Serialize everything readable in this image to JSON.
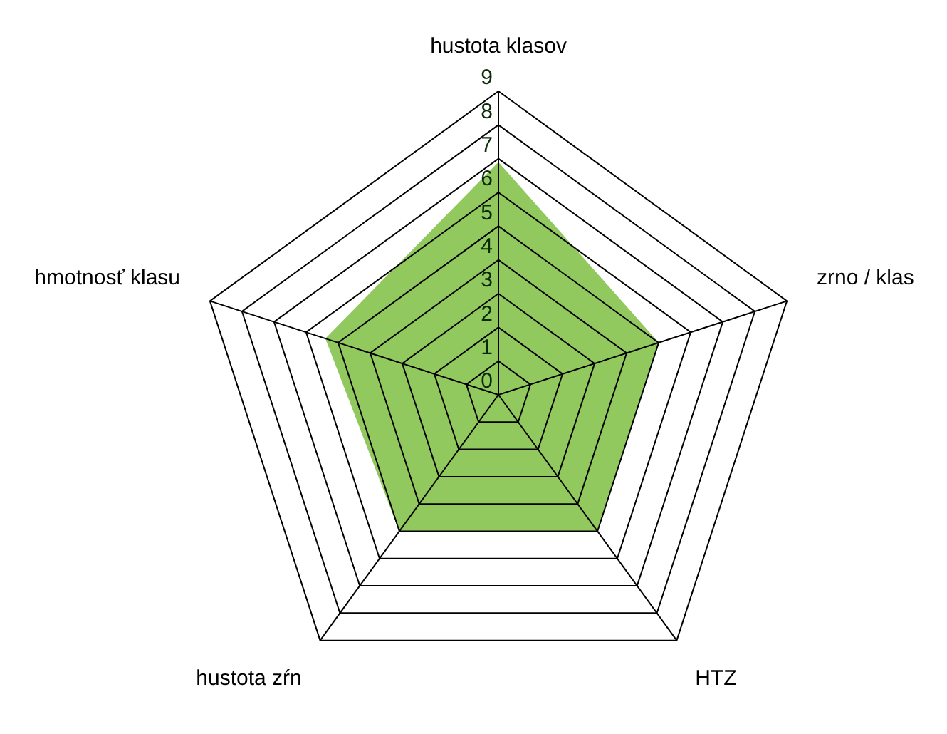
{
  "chart_data": {
    "type": "radar",
    "categories": [
      "hustota klasov",
      "zrno / klas",
      "HTZ",
      "hustota zŕn",
      "hmotnosť klasu"
    ],
    "series": [
      {
        "color": "#92c95f",
        "values": [
          6.9,
          5,
          5,
          5,
          5.4
        ]
      }
    ],
    "ylim": [
      0,
      9
    ],
    "yticks": [
      0,
      1,
      2,
      3,
      4,
      5,
      6,
      7,
      8,
      9
    ],
    "grid": true,
    "legend": false,
    "marker": "none"
  }
}
